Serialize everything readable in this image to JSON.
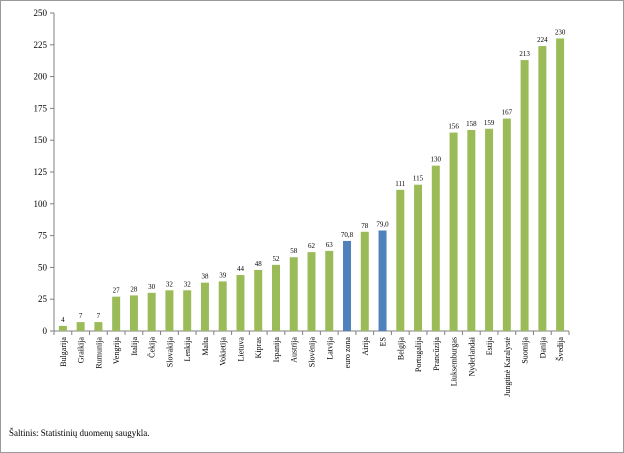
{
  "chart_data": {
    "type": "bar",
    "categories": [
      "Bulgarija",
      "Graikija",
      "Rumunija",
      "Vengrija",
      "Italija",
      "Čekija",
      "Slovakija",
      "Lenkija",
      "Malta",
      "Vokietija",
      "Lietuva",
      "Kipras",
      "Ispanija",
      "Austrija",
      "Slovėnija",
      "Latvija",
      "euro zona",
      "Airija",
      "ES",
      "Belgija",
      "Portugalija",
      "Prancūzija",
      "Liuksemburgas",
      "Nyderlandai",
      "Estija",
      "Jungtinė Karalystė",
      "Suomija",
      "Danija",
      "Švedija"
    ],
    "values": [
      4,
      7,
      7,
      27,
      28,
      30,
      32,
      32,
      38,
      39,
      44,
      48,
      52,
      58,
      62,
      63,
      70.8,
      78,
      79.0,
      111,
      115,
      130,
      156,
      158,
      159,
      167,
      213,
      224,
      230
    ],
    "data_labels": [
      "4",
      "7",
      "7",
      "27",
      "28",
      "30",
      "32",
      "32",
      "38",
      "39",
      "44",
      "48",
      "52",
      "58",
      "62",
      "63",
      "70,8",
      "78",
      "79,0",
      "111",
      "115",
      "130",
      "156",
      "158",
      "159",
      "167",
      "213",
      "224",
      "230"
    ],
    "highlighted": [
      "euro zona",
      "ES"
    ],
    "colors": {
      "default": "#9bbb59",
      "highlight": "#4f81bd",
      "axis": "#808080"
    },
    "ylim": [
      0,
      250
    ],
    "yticks": [
      0,
      25,
      50,
      75,
      100,
      125,
      150,
      175,
      200,
      225,
      250
    ],
    "grid": false,
    "title": "",
    "xlabel": "",
    "ylabel": ""
  },
  "source": "Šaltinis: Statistinių duomenų saugykla."
}
